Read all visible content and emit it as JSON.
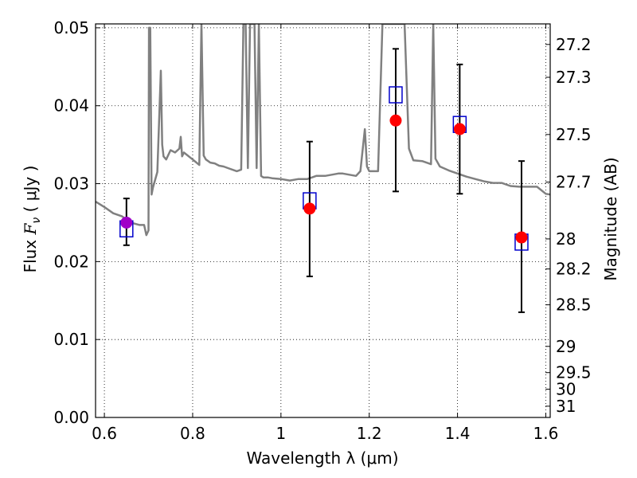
{
  "chart_data": {
    "type": "scatter",
    "title": "",
    "xlabel": "Wavelength  λ (μm)",
    "ylabel_left": "Flux  F_ν  ( μJy )",
    "ylabel_right": "Magnitude (AB)",
    "xlim": [
      0.58,
      1.61
    ],
    "ylim": [
      0.0,
      0.0505
    ],
    "grid": true,
    "grid_style": "dotted",
    "x_ticks": [
      0.6,
      0.8,
      1.0,
      1.2,
      1.4,
      1.6
    ],
    "x_tick_labels": [
      "0.6",
      "0.8",
      "1",
      "1.2",
      "1.4",
      "1.6"
    ],
    "y_ticks": [
      0.0,
      0.01,
      0.02,
      0.03,
      0.04,
      0.05
    ],
    "y_tick_labels": [
      "0.00",
      "0.01",
      "0.02",
      "0.03",
      "0.04",
      "0.05"
    ],
    "right_ticks": [
      {
        "mag": 27.2,
        "label": "27.2"
      },
      {
        "mag": 27.3,
        "label": "27.3"
      },
      {
        "mag": 27.5,
        "label": "27.5"
      },
      {
        "mag": 27.7,
        "label": "27.7"
      },
      {
        "mag": 28.0,
        "label": "28"
      },
      {
        "mag": 28.2,
        "label": "28.2"
      },
      {
        "mag": 28.5,
        "label": "28.5"
      },
      {
        "mag": 29.0,
        "label": "29"
      },
      {
        "mag": 29.5,
        "label": "29.5"
      },
      {
        "mag": 30.0,
        "label": "30"
      },
      {
        "mag": 31.0,
        "label": "31"
      }
    ],
    "colors": {
      "spectrum": "#808080",
      "model": "#0000cc",
      "observed": "#ff0000",
      "first_point": "#a000c8",
      "errorbar": "#000000"
    },
    "series": [
      {
        "kind": "line",
        "x": [
          0.58,
          0.6,
          0.62,
          0.64,
          0.66,
          0.68,
          0.69,
          0.695,
          0.7,
          0.701,
          0.704,
          0.707,
          0.71,
          0.72,
          0.728,
          0.731,
          0.734,
          0.74,
          0.75,
          0.76,
          0.77,
          0.773,
          0.776,
          0.78,
          0.8,
          0.815,
          0.82,
          0.825,
          0.83,
          0.84,
          0.85,
          0.86,
          0.87,
          0.88,
          0.9,
          0.91,
          0.915,
          0.918,
          0.92,
          0.925,
          0.93,
          0.935,
          0.94,
          0.945,
          0.95,
          0.955,
          0.96,
          0.97,
          0.98,
          1.0,
          1.02,
          1.04,
          1.06,
          1.08,
          1.1,
          1.12,
          1.13,
          1.14,
          1.15,
          1.16,
          1.17,
          1.18,
          1.19,
          1.195,
          1.2,
          1.21,
          1.22,
          1.23,
          1.24,
          1.26,
          1.28,
          1.29,
          1.3,
          1.32,
          1.34,
          1.345,
          1.35,
          1.36,
          1.38,
          1.4,
          1.42,
          1.44,
          1.46,
          1.48,
          1.5,
          1.52,
          1.54,
          1.56,
          1.58,
          1.6,
          1.61
        ],
        "y": [
          0.0277,
          0.027,
          0.0262,
          0.0258,
          0.025,
          0.0247,
          0.0247,
          0.0234,
          0.024,
          0.05,
          0.05,
          0.0286,
          0.0295,
          0.0315,
          0.0445,
          0.035,
          0.0335,
          0.0331,
          0.0343,
          0.034,
          0.0345,
          0.036,
          0.0335,
          0.034,
          0.0331,
          0.0324,
          0.0505,
          0.0336,
          0.0331,
          0.0327,
          0.0326,
          0.0323,
          0.0322,
          0.032,
          0.0316,
          0.0318,
          0.0505,
          0.0505,
          0.0505,
          0.032,
          0.0505,
          0.0505,
          0.0505,
          0.032,
          0.0505,
          0.031,
          0.0308,
          0.0308,
          0.0307,
          0.0306,
          0.0304,
          0.0306,
          0.0306,
          0.031,
          0.031,
          0.0312,
          0.0313,
          0.0313,
          0.0312,
          0.0311,
          0.031,
          0.0316,
          0.037,
          0.0322,
          0.0316,
          0.0316,
          0.0316,
          0.0505,
          0.0505,
          0.0505,
          0.0505,
          0.0345,
          0.033,
          0.0329,
          0.0325,
          0.0505,
          0.0332,
          0.0322,
          0.0317,
          0.0313,
          0.0309,
          0.0306,
          0.0303,
          0.0301,
          0.0301,
          0.0297,
          0.0296,
          0.0296,
          0.0296,
          0.0287,
          0.0286
        ]
      },
      {
        "kind": "scatter",
        "marker": "open-square",
        "x": [
          0.65,
          1.065,
          1.26,
          1.405,
          1.545
        ],
        "y": [
          0.0242,
          0.0278,
          0.0414,
          0.0376,
          0.0225
        ]
      },
      {
        "kind": "scatter",
        "marker": "filled-circle",
        "x": [
          0.65,
          1.065,
          1.26,
          1.405,
          1.545
        ],
        "y": [
          0.025,
          0.0268,
          0.0381,
          0.037,
          0.0231
        ],
        "yerr_low": [
          0.0221,
          0.0181,
          0.029,
          0.0287,
          0.0135
        ],
        "yerr_high": [
          0.0281,
          0.0354,
          0.0473,
          0.0453,
          0.0329
        ]
      }
    ]
  }
}
